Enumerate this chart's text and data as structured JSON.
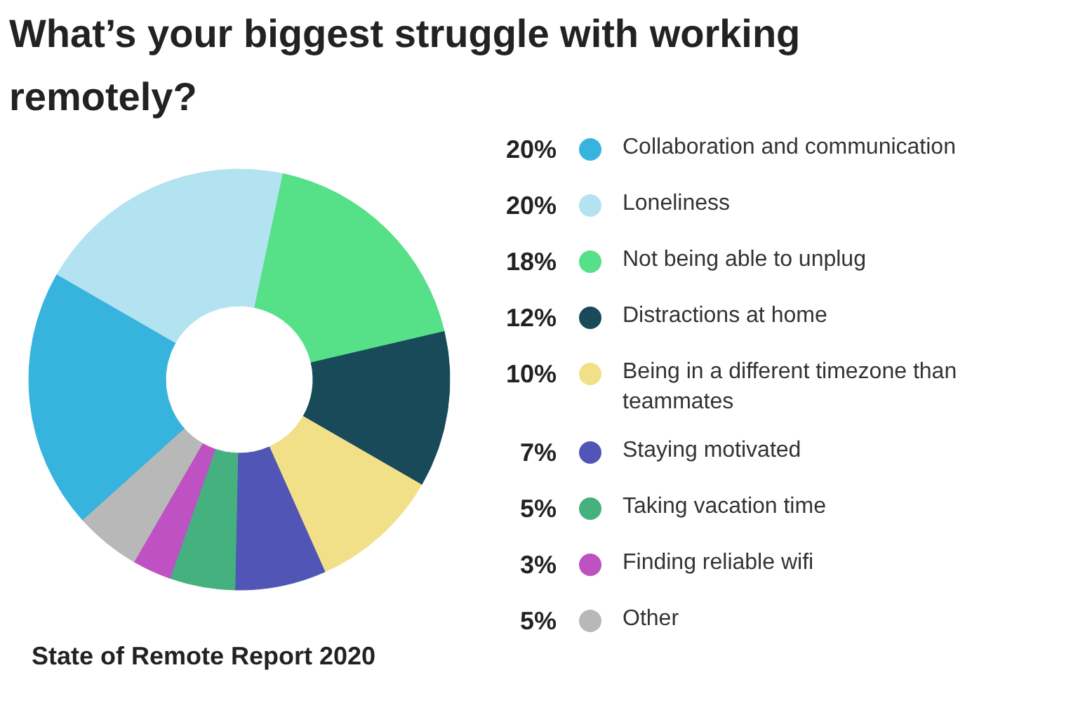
{
  "chart_data": {
    "type": "donut",
    "title": "What’s your biggest struggle with working remotely?",
    "categories": [
      "Collaboration and communication",
      "Loneliness",
      "Not being able to unplug",
      "Distractions at home",
      "Being in a different timezone than teammates",
      "Staying motivated",
      "Taking vacation time",
      "Finding reliable wifi",
      "Other"
    ],
    "values": [
      20,
      20,
      18,
      12,
      10,
      7,
      5,
      3,
      5
    ],
    "value_labels": [
      "20%",
      "20%",
      "18%",
      "12%",
      "10%",
      "7%",
      "5%",
      "3%",
      "5%"
    ],
    "colors": [
      "#36b4de",
      "#b3e2f1",
      "#56e087",
      "#184a5a",
      "#f2e089",
      "#5155b5",
      "#44b17f",
      "#be52c2",
      "#b8b8b8"
    ],
    "legend": "right",
    "annotations": [
      "State of Remote Report 2020"
    ]
  }
}
